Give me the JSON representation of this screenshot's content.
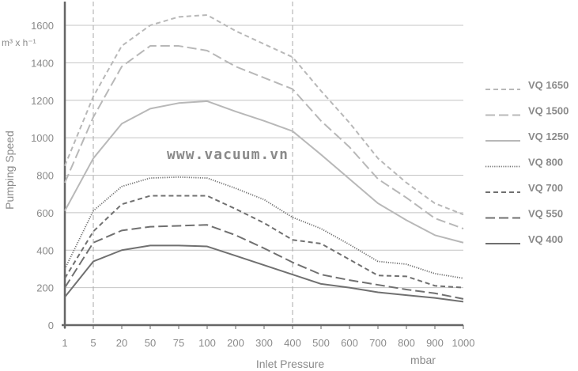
{
  "chart_data": {
    "type": "line",
    "title": "",
    "xlabel": "Inlet Pressure",
    "xunit": "mbar",
    "ylabel": "Pumping Speed",
    "yunit": "m³ x h⁻¹",
    "watermark": "www.vacuum.vn",
    "x": [
      "1",
      "5",
      "20",
      "50",
      "75",
      "100",
      "200",
      "300",
      "400",
      "500",
      "600",
      "700",
      "800",
      "900",
      "1000"
    ],
    "ylim": [
      0,
      1700
    ],
    "yticks": [
      0,
      200,
      400,
      600,
      800,
      1000,
      1200,
      1400,
      1600
    ],
    "grid": "horizontal",
    "reference_lines_x": [
      "5",
      "400"
    ],
    "legend_position": "right",
    "series": [
      {
        "name": "VQ 1650",
        "style": "short-dash",
        "color": "#b8b8b8",
        "values": [
          850,
          1220,
          1490,
          1600,
          1645,
          1655,
          1570,
          1500,
          1430,
          1250,
          1080,
          890,
          760,
          650,
          590
        ]
      },
      {
        "name": "VQ 1500",
        "style": "long-dash",
        "color": "#b8b8b8",
        "values": [
          760,
          1110,
          1380,
          1490,
          1490,
          1465,
          1380,
          1320,
          1260,
          1090,
          950,
          780,
          680,
          570,
          515
        ]
      },
      {
        "name": "VQ 1250",
        "style": "solid",
        "color": "#b8b8b8",
        "values": [
          610,
          890,
          1075,
          1155,
          1185,
          1195,
          1140,
          1090,
          1035,
          910,
          780,
          650,
          560,
          480,
          440
        ]
      },
      {
        "name": "VQ 800",
        "style": "dotted",
        "color": "#707070",
        "values": [
          300,
          610,
          740,
          785,
          790,
          785,
          730,
          670,
          575,
          515,
          430,
          340,
          325,
          275,
          250
        ]
      },
      {
        "name": "VQ 700",
        "style": "short-dash",
        "color": "#707070",
        "values": [
          250,
          500,
          645,
          690,
          690,
          690,
          620,
          545,
          455,
          435,
          350,
          265,
          260,
          210,
          200
        ]
      },
      {
        "name": "VQ 550",
        "style": "long-dash",
        "color": "#707070",
        "values": [
          200,
          440,
          505,
          525,
          530,
          535,
          480,
          410,
          335,
          270,
          240,
          215,
          190,
          170,
          140
        ]
      },
      {
        "name": "VQ 400",
        "style": "solid",
        "color": "#707070",
        "values": [
          150,
          340,
          400,
          425,
          425,
          420,
          370,
          320,
          270,
          220,
          200,
          175,
          160,
          145,
          125
        ]
      }
    ]
  }
}
